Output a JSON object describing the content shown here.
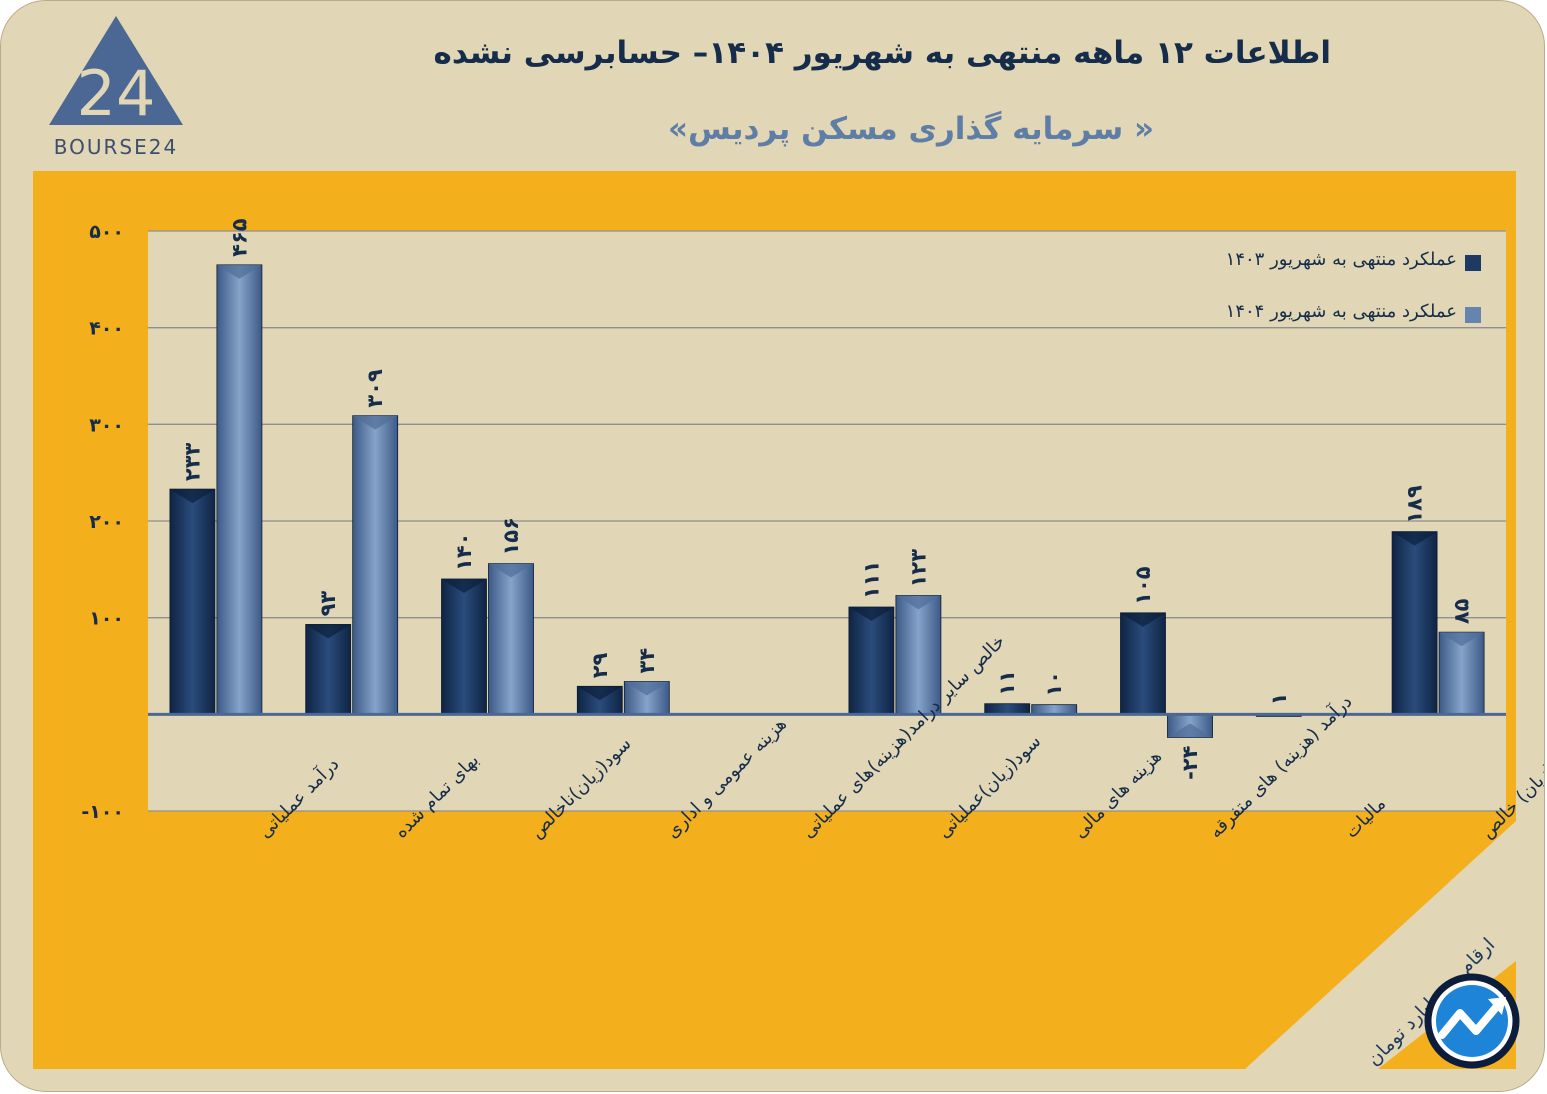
{
  "header": {
    "title": "اطلاعات ۱۲ ماهه منتهی به شهریور  ۱۴۰۴– حسابرسی نشده",
    "subtitle": "« سرمایه گذاری مسکن پردیس»",
    "logo_text": "BOURSE24",
    "logo_mark": "24"
  },
  "note": "ارقام به میلیارد تومان",
  "colors": {
    "background": "#e1d6b5",
    "panel": "#f4af1c",
    "series_1403": "#1e3a62",
    "series_1404": "#6584b0",
    "label": "#152c4a"
  },
  "chart_data": {
    "type": "bar",
    "title": "اطلاعات ۱۲ ماهه منتهی به شهریور  ۱۴۰۴– حسابرسی نشده",
    "ylim": [
      -100,
      500
    ],
    "yticks": [
      {
        "value": 500,
        "label": "۵۰۰"
      },
      {
        "value": 400,
        "label": "۴۰۰"
      },
      {
        "value": 300,
        "label": "۳۰۰"
      },
      {
        "value": 200,
        "label": "۲۰۰"
      },
      {
        "value": 100,
        "label": "۱۰۰"
      },
      {
        "value": -100,
        "label": "-۱۰۰"
      }
    ],
    "categories": [
      "درآمد عملیاتی",
      "بهای تمام شده",
      "سود(زیان)ناخالص",
      "هزینه عمومی و اداری",
      "خالص سایر درامد(هزینه)های عملیاتی",
      "سود(زیان)عملیاتی",
      "هزینه های مالی",
      "درآمد (هزینه) های متفرقه",
      "مالیات",
      "سود(زیان) خالص"
    ],
    "series": [
      {
        "name": "عملکرد منتهی به شهریور ۱۴۰۳",
        "values": [
          233,
          93,
          140,
          29,
          null,
          111,
          11,
          105,
          1,
          189
        ],
        "labels": [
          "۲۳۳",
          "۹۳",
          "۱۴۰",
          "۲۹",
          "",
          "۱۱۱",
          "۱۱",
          "۱۰۵",
          "۱",
          "۱۸۹"
        ]
      },
      {
        "name": "عملکرد منتهی به شهریور ۱۴۰۴",
        "values": [
          465,
          309,
          156,
          34,
          null,
          123,
          10,
          -24,
          null,
          85
        ],
        "labels": [
          "۴۶۵",
          "۳۰۹",
          "۱۵۶",
          "۳۴",
          "",
          "۱۲۳",
          "۱۰",
          "-۲۴",
          "",
          "۸۵"
        ]
      }
    ],
    "grid": true,
    "legend_position": "top-right"
  }
}
